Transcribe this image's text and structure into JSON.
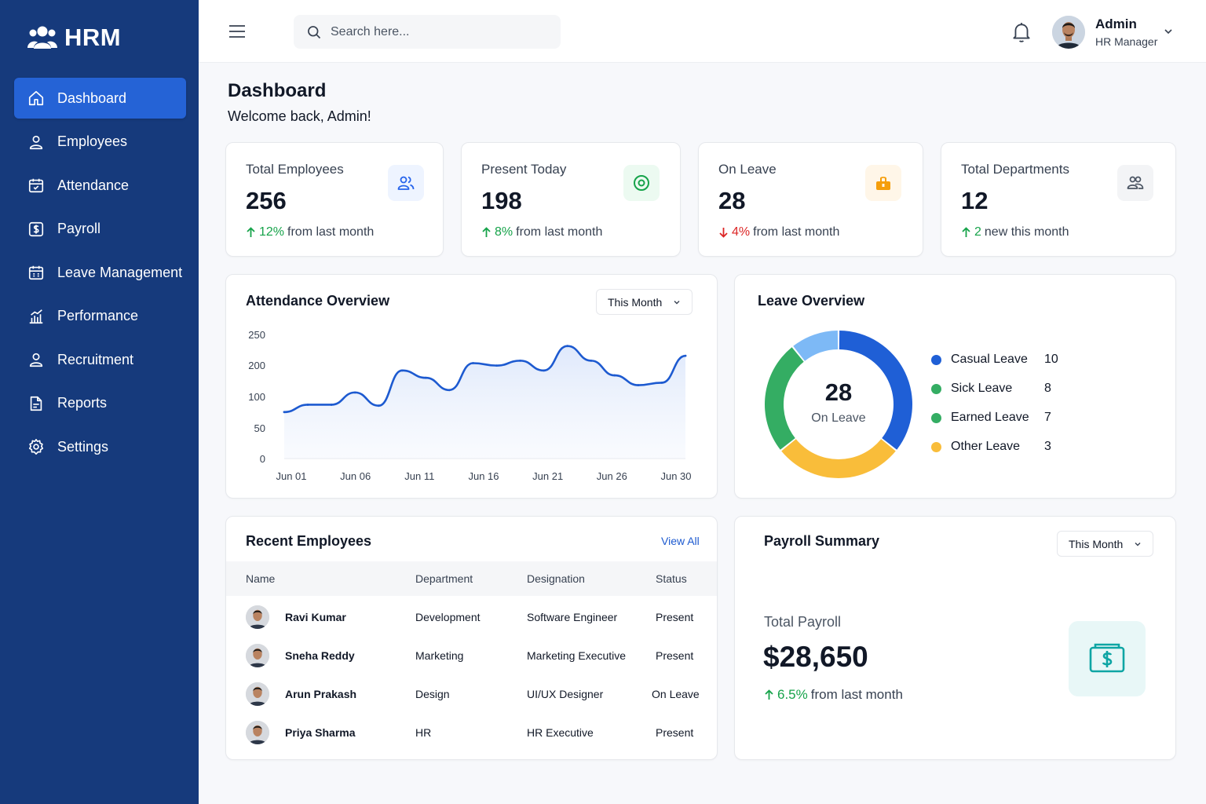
{
  "app": {
    "name": "HRM"
  },
  "sidebar": {
    "items": [
      {
        "label": "Dashboard",
        "icon": "home-icon",
        "active": true
      },
      {
        "label": "Employees",
        "icon": "user-icon"
      },
      {
        "label": "Attendance",
        "icon": "calendar-check-icon"
      },
      {
        "label": "Payroll",
        "icon": "dollar-doc-icon"
      },
      {
        "label": "Leave Management",
        "icon": "calendar-icon"
      },
      {
        "label": "Performance",
        "icon": "bar-chart-icon"
      },
      {
        "label": "Recruitment",
        "icon": "user-icon"
      },
      {
        "label": "Reports",
        "icon": "document-icon"
      },
      {
        "label": "Settings",
        "icon": "gear-icon"
      }
    ]
  },
  "header": {
    "search_placeholder": "Search here...",
    "user_name": "Admin",
    "user_role": "HR Manager"
  },
  "page": {
    "title": "Dashboard",
    "subtitle": "Welcome back, Admin!"
  },
  "stats": [
    {
      "label": "Total Employees",
      "value": "256",
      "direction": "up",
      "change": "12%",
      "suffix": "from last month",
      "icon": "users-icon",
      "color": "#2563eb",
      "bg": "#eef4ff"
    },
    {
      "label": "Present Today",
      "value": "198",
      "direction": "up",
      "change": "8%",
      "suffix": "from last month",
      "icon": "target-icon",
      "color": "#16a34a",
      "bg": "#ecfaf1"
    },
    {
      "label": "On Leave",
      "value": "28",
      "direction": "down",
      "change": "4%",
      "suffix": "from last month",
      "icon": "briefcase-icon",
      "color": "#f59e0b",
      "bg": "#fff6e8"
    },
    {
      "label": "Total Departments",
      "value": "12",
      "direction": "up",
      "change": "2",
      "suffix": "new this month",
      "icon": "users-group-icon",
      "color": "#4b5563",
      "bg": "#f3f4f6"
    }
  ],
  "attendance": {
    "title": "Attendance Overview",
    "filter": "This Month"
  },
  "leave": {
    "title": "Leave Overview",
    "center_value": "28",
    "center_label": "On Leave"
  },
  "employees": {
    "title": "Recent Employees",
    "view_all": "View All",
    "columns": [
      "Name",
      "Department",
      "Designation",
      "Status"
    ],
    "rows": [
      {
        "name": "Ravi Kumar",
        "department": "Development",
        "designation": "Software Engineer",
        "status": "Present"
      },
      {
        "name": "Sneha Reddy",
        "department": "Marketing",
        "designation": "Marketing Executive",
        "status": "Present"
      },
      {
        "name": "Arun Prakash",
        "department": "Design",
        "designation": "UI/UX Designer",
        "status": "On Leave"
      },
      {
        "name": "Priya Sharma",
        "department": "HR",
        "designation": "HR Executive",
        "status": "Present"
      }
    ]
  },
  "payroll": {
    "title": "Payroll Summary",
    "filter": "This Month",
    "label": "Total Payroll",
    "value": "$28,650",
    "change": "6.5%",
    "suffix": "from last month",
    "icon": "dollar-icon"
  },
  "chart_data": [
    {
      "type": "area",
      "x": [
        "Jun 01",
        "Jun 03",
        "Jun 05",
        "Jun 06",
        "Jun 08",
        "Jun 10",
        "Jun 11",
        "Jun 13",
        "Jun 15",
        "Jun 16",
        "Jun 18",
        "Jun 20",
        "Jun 21",
        "Jun 23",
        "Jun 25",
        "Jun 26",
        "Jun 28",
        "Jun 30"
      ],
      "xticks": [
        "Jun 01",
        "Jun 06",
        "Jun 11",
        "Jun 16",
        "Jun 21",
        "Jun 26",
        "Jun 30"
      ],
      "yticks": [
        "250",
        "200",
        "100",
        "50",
        "0"
      ],
      "values": [
        95,
        110,
        110,
        135,
        108,
        180,
        165,
        140,
        195,
        190,
        200,
        180,
        230,
        200,
        170,
        150,
        155,
        210
      ],
      "color": "#1d5ad0",
      "grid": false
    },
    {
      "type": "pie",
      "donut": true,
      "categories": [
        "Casual Leave",
        "Sick Leave",
        "Earned Leave",
        "Other Leave"
      ],
      "values": [
        10,
        8,
        7,
        3
      ],
      "colors": [
        "#1f5fd6",
        "#f9bd3a",
        "#34ad63",
        "#7db9f6"
      ]
    }
  ]
}
